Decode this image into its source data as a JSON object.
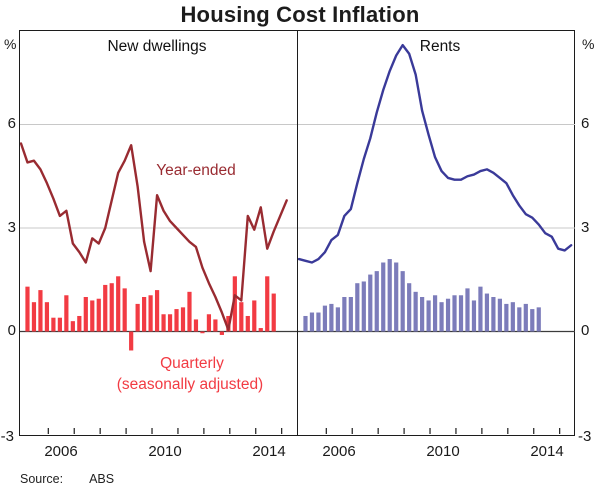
{
  "title": "Housing Cost Inflation",
  "axis": {
    "unit_left": "%",
    "unit_right": "%",
    "y_ticks": [
      "6",
      "3",
      "0",
      "-3"
    ],
    "x_labels": [
      "2006",
      "2010",
      "2014"
    ]
  },
  "labels": {
    "left_panel": "New dwellings",
    "right_panel": "Rents",
    "year_ended": "Year-ended",
    "quarterly": "Quarterly",
    "seasonally": "(seasonally adjusted)"
  },
  "source": {
    "label": "Source:",
    "value": "ABS"
  },
  "colors": {
    "left_line": "#992b31",
    "left_bars": "#f23b43",
    "right_line": "#3a3a99",
    "right_bars": "#7c7cba",
    "gridline": "#c8c8c8",
    "zero_line": "#3c3c3c",
    "frame": "#1c1c1c"
  },
  "chart_data": [
    {
      "type": "line+bar",
      "panel": "left",
      "title": "New dwellings",
      "ylabel": "%",
      "ylim": [
        -3,
        8.7
      ],
      "gridlines": [
        0,
        3,
        6
      ],
      "x_tick_years": [
        2006,
        2007,
        2008,
        2009,
        2010,
        2011,
        2012,
        2013,
        2014,
        2015
      ],
      "line": {
        "name": "Year-ended",
        "freq": "quarterly",
        "start": "2004 Q4",
        "color": "#992b31",
        "values": [
          5.45,
          4.9,
          4.95,
          4.7,
          4.3,
          3.85,
          3.35,
          3.5,
          2.55,
          2.3,
          2.0,
          2.7,
          2.55,
          3.0,
          3.8,
          4.6,
          4.95,
          5.4,
          4.2,
          2.6,
          1.75,
          3.95,
          3.5,
          3.2,
          3.0,
          2.8,
          2.6,
          2.45,
          1.85,
          1.4,
          1.0,
          0.55,
          0.05,
          1.05,
          0.9,
          3.35,
          2.95,
          3.6,
          2.4,
          2.9,
          3.35,
          3.8
        ]
      },
      "bars": {
        "name": "Quarterly (seasonally adjusted)",
        "freq": "quarterly",
        "start": "2005 Q1",
        "color": "#f23b43",
        "values": [
          1.3,
          0.85,
          1.2,
          0.85,
          0.4,
          0.4,
          1.05,
          0.3,
          0.45,
          1.0,
          0.9,
          0.95,
          1.35,
          1.4,
          1.6,
          1.25,
          -0.55,
          0.8,
          1.0,
          1.05,
          1.2,
          0.5,
          0.5,
          0.65,
          0.7,
          1.15,
          0.35,
          -0.05,
          0.5,
          0.35,
          -0.1,
          0.45,
          1.6,
          0.85,
          0.45,
          0.9,
          0.1,
          1.6,
          1.1
        ]
      }
    },
    {
      "type": "line+bar",
      "panel": "right",
      "title": "Rents",
      "ylabel": "%",
      "ylim": [
        -3,
        8.7
      ],
      "gridlines": [
        0,
        3,
        6
      ],
      "x_tick_years": [
        2006,
        2007,
        2008,
        2009,
        2010,
        2011,
        2012,
        2013,
        2014,
        2015
      ],
      "line": {
        "name": "Rents (year-ended)",
        "freq": "quarterly",
        "start": "2004 Q4",
        "color": "#3a3a99",
        "values": [
          2.1,
          2.05,
          2.0,
          2.1,
          2.3,
          2.65,
          2.8,
          3.35,
          3.55,
          4.3,
          5.0,
          5.6,
          6.35,
          7.0,
          7.55,
          8.0,
          8.3,
          8.05,
          7.45,
          6.4,
          5.7,
          5.05,
          4.65,
          4.45,
          4.4,
          4.4,
          4.5,
          4.55,
          4.65,
          4.7,
          4.6,
          4.45,
          4.3,
          3.95,
          3.65,
          3.4,
          3.3,
          3.1,
          2.85,
          2.75,
          2.4,
          2.35,
          2.5
        ]
      },
      "bars": {
        "name": "Rents (quarterly)",
        "freq": "quarterly",
        "start": "2005 Q1",
        "color": "#7c7cba",
        "values": [
          0.45,
          0.55,
          0.55,
          0.75,
          0.8,
          0.7,
          1.0,
          1.0,
          1.4,
          1.45,
          1.65,
          1.75,
          2.0,
          2.1,
          2.0,
          1.75,
          1.4,
          1.15,
          1.0,
          0.9,
          1.05,
          0.85,
          0.95,
          1.05,
          1.05,
          1.25,
          0.9,
          1.3,
          1.1,
          1.0,
          0.95,
          0.8,
          0.85,
          0.7,
          0.8,
          0.65,
          0.7
        ]
      }
    }
  ]
}
